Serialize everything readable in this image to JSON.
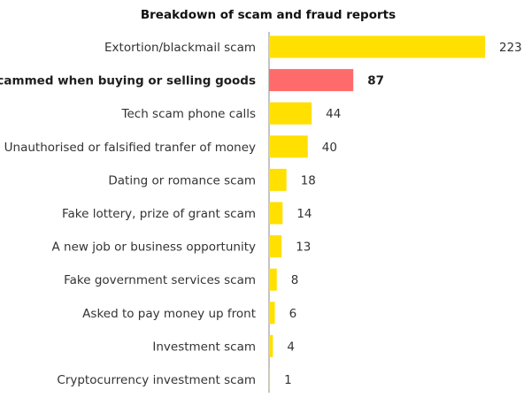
{
  "chart_data": {
    "type": "bar",
    "orientation": "horizontal",
    "title": "Breakdown of scam and fraud reports",
    "xlabel": "",
    "ylabel": "",
    "categories": [
      "Extortion/blackmail scam",
      "Scammed when buying or selling goods",
      "Tech scam phone calls",
      "Unauthorised or falsified tranfer of money",
      "Dating or romance scam",
      "Fake lottery, prize of grant scam",
      "A new job or business opportunity",
      "Fake government services scam",
      "Asked to pay money up front",
      "Investment scam",
      "Cryptocurrency investment scam"
    ],
    "values": [
      223,
      87,
      44,
      40,
      18,
      14,
      13,
      8,
      6,
      4,
      1
    ],
    "highlight_index": 1,
    "colors": {
      "bar": "#FFE000",
      "highlight": "#FF6B6B",
      "axis": "#888888"
    },
    "grid": false,
    "legend": "none",
    "xlim": [
      0,
      223
    ]
  }
}
